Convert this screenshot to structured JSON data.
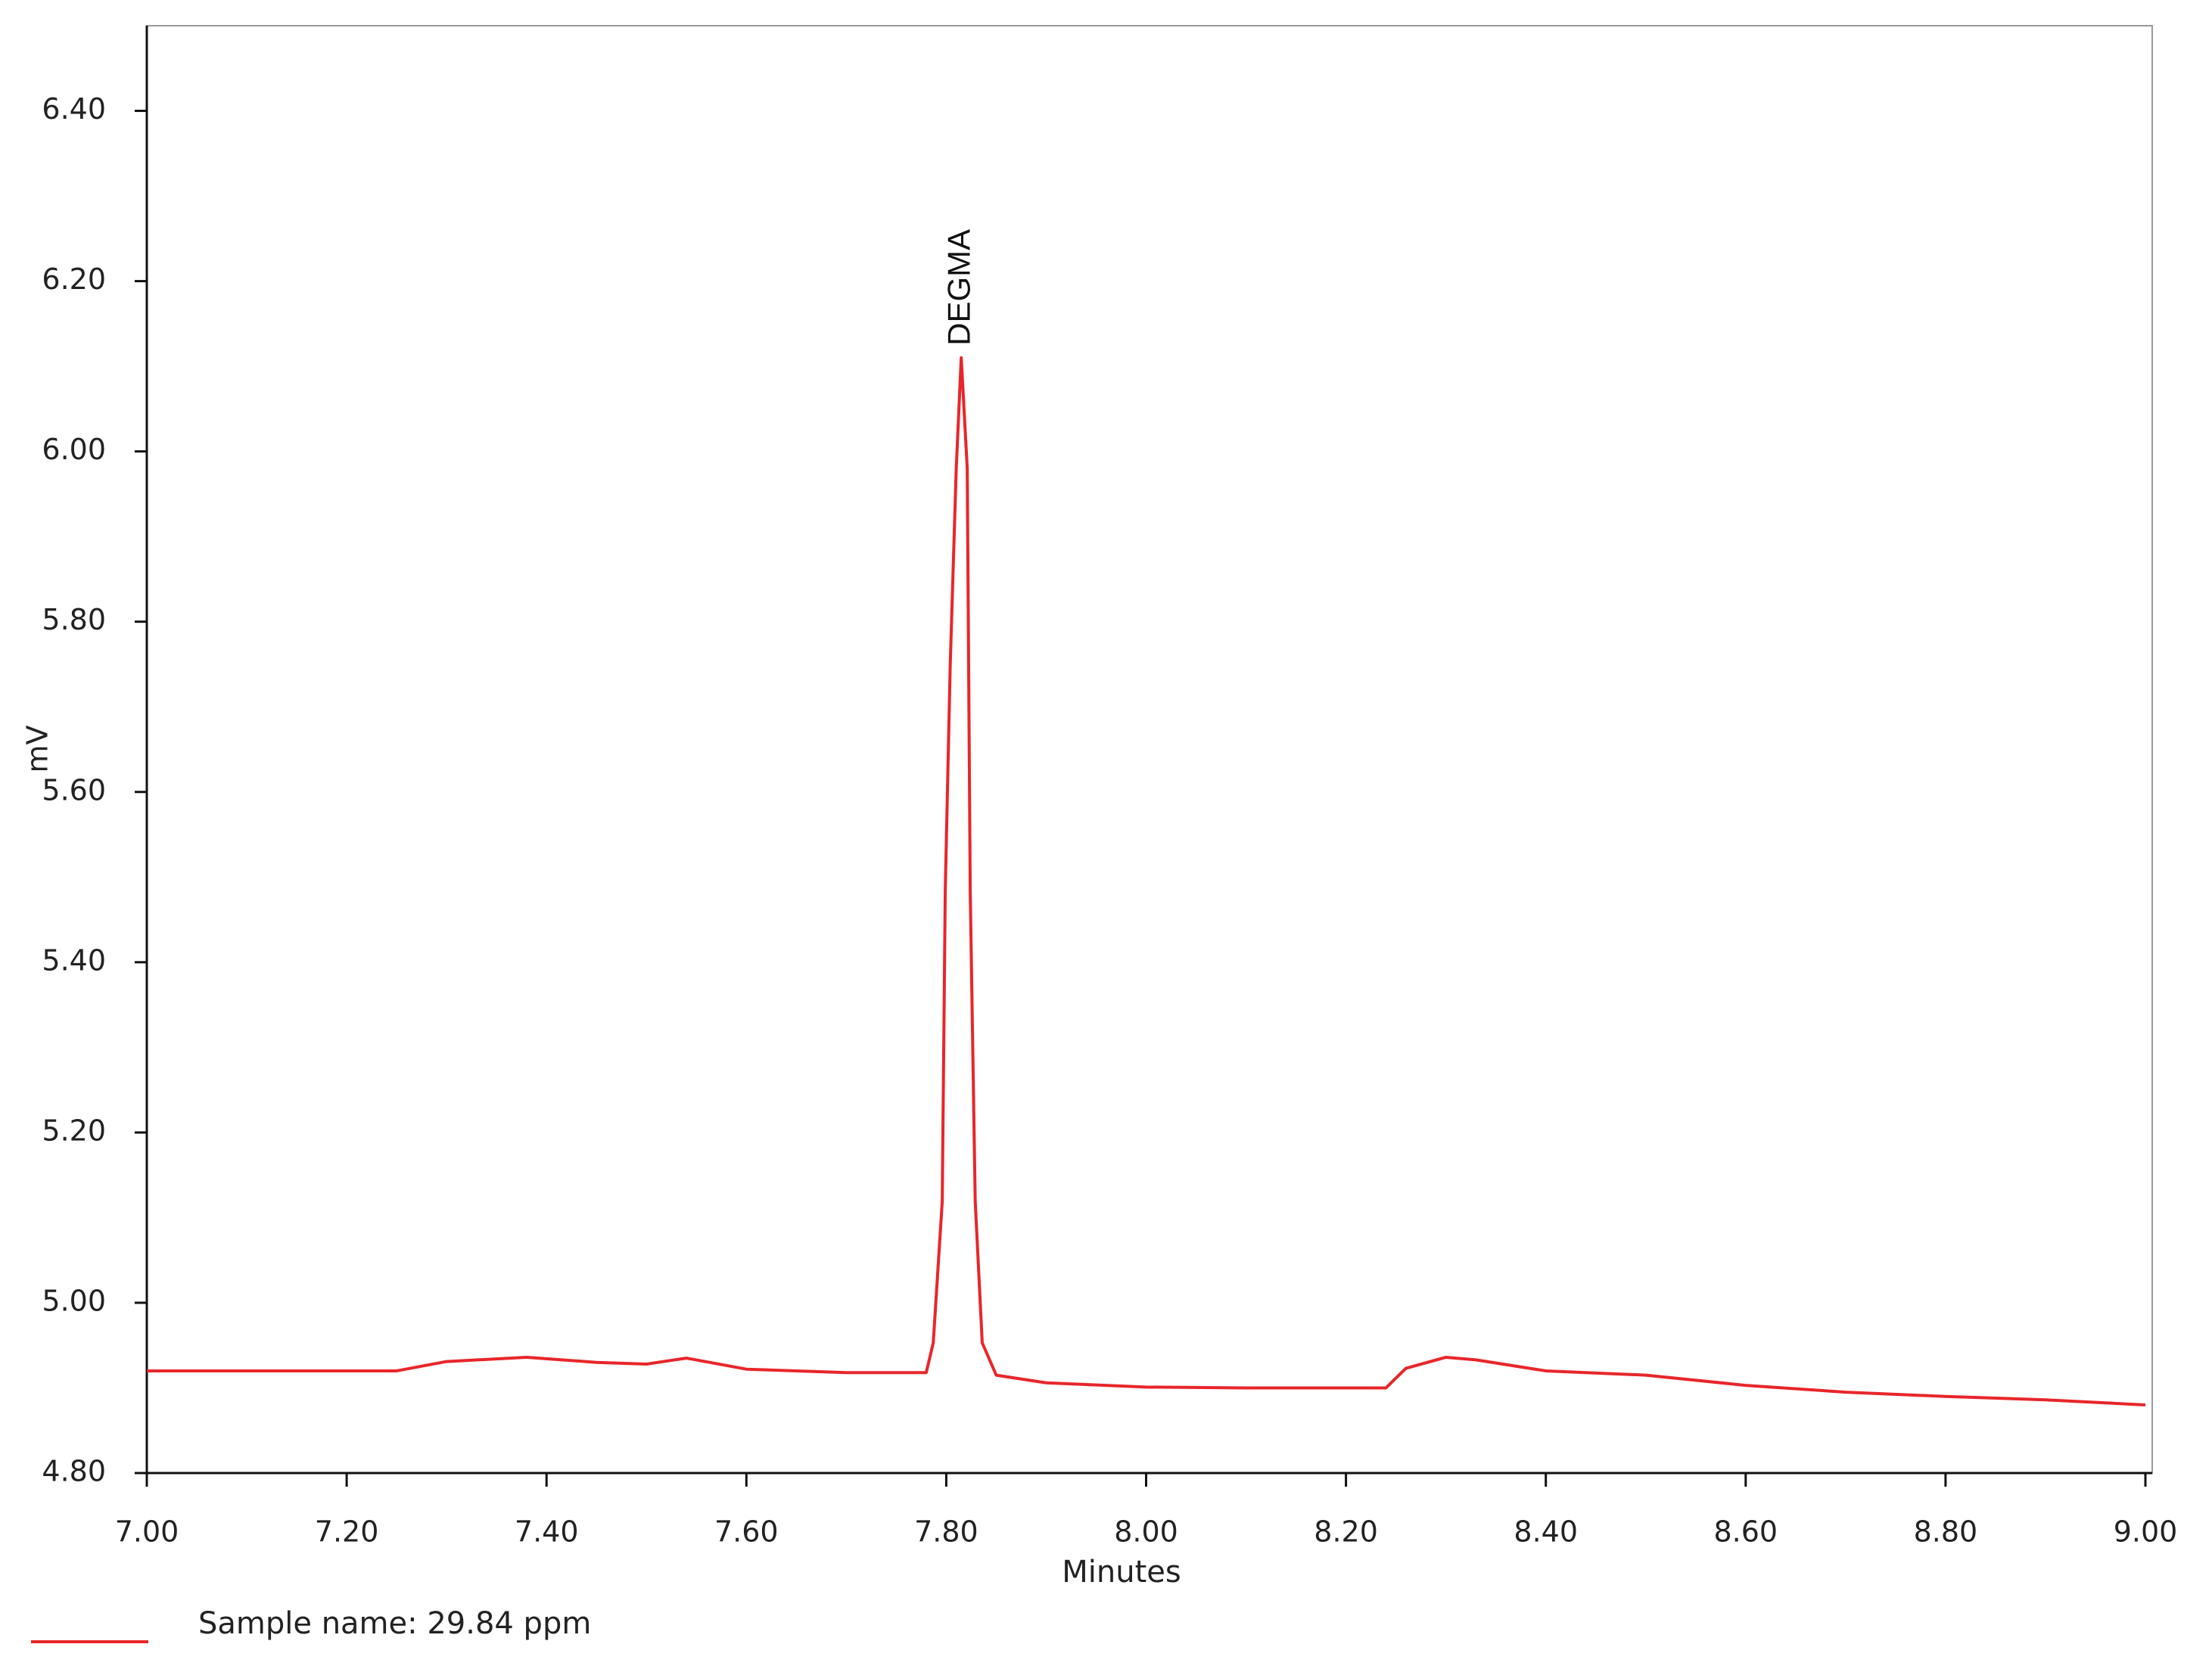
{
  "chart_data": {
    "type": "line",
    "annotation": "DEGMA",
    "xlabel": "Minutes",
    "ylabel": "mV",
    "x": [
      7.0,
      7.05,
      7.25,
      7.3,
      7.38,
      7.45,
      7.5,
      7.54,
      7.6,
      7.7,
      7.78,
      7.787,
      7.796,
      7.799,
      7.804,
      7.81,
      7.815,
      7.821,
      7.824,
      7.829,
      7.836,
      7.85,
      7.9,
      8.0,
      8.1,
      8.24,
      8.26,
      8.3,
      8.33,
      8.4,
      8.5,
      8.6,
      8.7,
      8.8,
      8.9,
      9.0
    ],
    "series": [
      {
        "name": "Sample name: 29.84 ppm",
        "color": "#e8262a",
        "values": [
          4.92,
          4.92,
          4.92,
          4.931,
          4.936,
          4.93,
          4.928,
          4.935,
          4.922,
          4.918,
          4.918,
          4.953,
          5.119,
          5.484,
          5.75,
          5.98,
          6.11,
          5.98,
          5.484,
          5.119,
          4.953,
          4.915,
          4.906,
          4.901,
          4.9,
          4.9,
          4.923,
          4.936,
          4.933,
          4.92,
          4.915,
          4.903,
          4.895,
          4.89,
          4.886,
          4.88
        ]
      }
    ],
    "xlim": [
      7.0,
      9.0
    ],
    "xticks": [
      {
        "value": 7.0,
        "label": "7.00"
      },
      {
        "value": 7.2,
        "label": "7.20"
      },
      {
        "value": 7.4,
        "label": "7.40"
      },
      {
        "value": 7.6,
        "label": "7.60"
      },
      {
        "value": 7.8,
        "label": "7.80"
      },
      {
        "value": 8.0,
        "label": "8.00"
      },
      {
        "value": 8.2,
        "label": "8.20"
      },
      {
        "value": 8.4,
        "label": "8.40"
      },
      {
        "value": 8.6,
        "label": "8.60"
      },
      {
        "value": 8.8,
        "label": "8.80"
      },
      {
        "value": 9.0,
        "label": "9.00"
      }
    ],
    "ylim": [
      4.8,
      6.5
    ],
    "yticks": [
      {
        "value": 4.8,
        "label": "4.80"
      },
      {
        "value": 5.0,
        "label": "5.00"
      },
      {
        "value": 5.2,
        "label": "5.20"
      },
      {
        "value": 5.4,
        "label": "5.40"
      },
      {
        "value": 5.6,
        "label": "5.60"
      },
      {
        "value": 5.8,
        "label": "5.80"
      },
      {
        "value": 6.0,
        "label": "6.00"
      },
      {
        "value": 6.2,
        "label": "6.20"
      },
      {
        "value": 6.4,
        "label": "6.40"
      }
    ],
    "grid": false,
    "legend": "bottom"
  }
}
